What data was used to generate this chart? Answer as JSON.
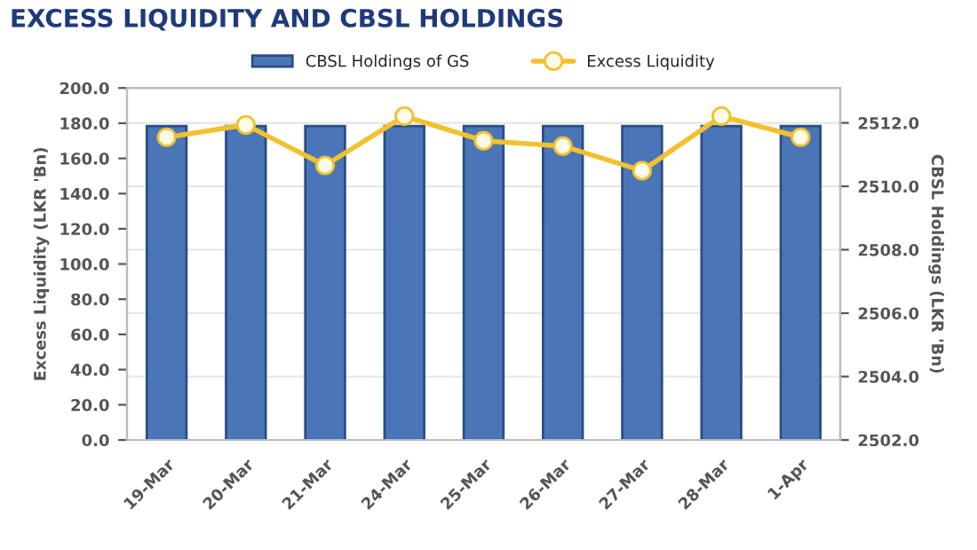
{
  "chart_data": {
    "type": "bar",
    "title": "EXCESS LIQUIDITY AND CBSL HOLDINGS",
    "ylabel": "Excess Liquidity (LKR 'Bn)",
    "y2label": "CBSL Holdings (LKR 'Bn)",
    "categories": [
      "19-Mar",
      "20-Mar",
      "21-Mar",
      "24-Mar",
      "25-Mar",
      "26-Mar",
      "27-Mar",
      "28-Mar",
      "1-Apr"
    ],
    "series": [
      {
        "name": "CBSL Holdings of GS",
        "axis": "y2",
        "color": "#4a76b8",
        "values": [
          2511.9,
          2511.9,
          2511.9,
          2511.9,
          2511.9,
          2511.9,
          2511.9,
          2511.9,
          2511.9
        ]
      },
      {
        "name": "Excess Liquidity",
        "type": "line",
        "color": "#f2c12e",
        "values": [
          172,
          179,
          156,
          184,
          170,
          167,
          153,
          184,
          172
        ]
      }
    ],
    "ylim": [
      0,
      200
    ],
    "yticks": [
      {
        "value": 0,
        "label": "0.0"
      },
      {
        "value": 20,
        "label": "20.0"
      },
      {
        "value": 40,
        "label": "40.0"
      },
      {
        "value": 60,
        "label": "60.0"
      },
      {
        "value": 80,
        "label": "80.0"
      },
      {
        "value": 100,
        "label": "100.0"
      },
      {
        "value": 120,
        "label": "120.0"
      },
      {
        "value": 140,
        "label": "140.0"
      },
      {
        "value": 160,
        "label": "160.0"
      },
      {
        "value": 180,
        "label": "180.0"
      },
      {
        "value": 200,
        "label": "200.0"
      }
    ],
    "y2lim": [
      2502,
      2513.1
    ],
    "y2ticks": [
      {
        "value": 2502,
        "label": "2502.0"
      },
      {
        "value": 2504,
        "label": "2504.0"
      },
      {
        "value": 2506,
        "label": "2506.0"
      },
      {
        "value": 2508,
        "label": "2508.0"
      },
      {
        "value": 2510,
        "label": "2510.0"
      },
      {
        "value": 2512,
        "label": "2512.0"
      }
    ],
    "grid": "y",
    "legend": "top",
    "marker": "circle"
  }
}
